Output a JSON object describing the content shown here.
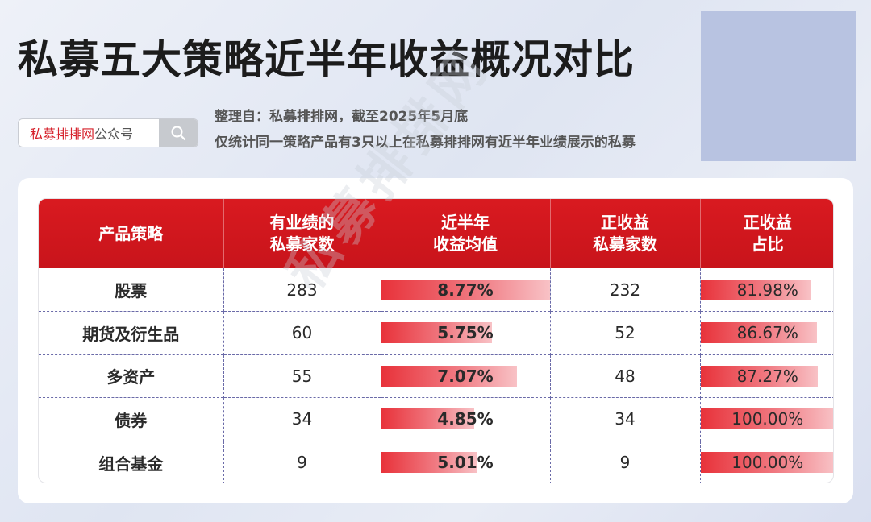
{
  "title": "私募五大策略近半年收益概况对比",
  "search": {
    "brand": "私募排排网",
    "suffix": "公众号"
  },
  "meta": {
    "source": "整理自：私募排排网，截至2025年5月底",
    "note": "仅统计同一策略产品有3只以上在私募排排网有近半年业绩展示的私募"
  },
  "watermark": "私募排排网",
  "table": {
    "headers": [
      [
        "产品策略"
      ],
      [
        "有业绩的",
        "私募家数"
      ],
      [
        "近半年",
        "收益均值"
      ],
      [
        "正收益",
        "私募家数"
      ],
      [
        "正收益",
        "占比"
      ]
    ],
    "rows": [
      {
        "strategy": "股票",
        "count": "283",
        "avg_return": "8.77%",
        "positive_count": "232",
        "positive_ratio": "81.98%"
      },
      {
        "strategy": "期货及衍生品",
        "count": "60",
        "avg_return": "5.75%",
        "positive_count": "52",
        "positive_ratio": "86.67%"
      },
      {
        "strategy": "多资产",
        "count": "55",
        "avg_return": "7.07%",
        "positive_count": "48",
        "positive_ratio": "87.27%"
      },
      {
        "strategy": "债券",
        "count": "34",
        "avg_return": "4.85%",
        "positive_count": "34",
        "positive_ratio": "100.00%"
      },
      {
        "strategy": "组合基金",
        "count": "9",
        "avg_return": "5.01%",
        "positive_count": "9",
        "positive_ratio": "100.00%"
      }
    ],
    "return_bar_max": 8.77,
    "ratio_bar_max": 100
  },
  "colors": {
    "header_red": "#d91a20",
    "bar_start": "#e8323a",
    "bar_end": "#f8c2c6"
  },
  "icons": {
    "search_button": "search-icon"
  }
}
